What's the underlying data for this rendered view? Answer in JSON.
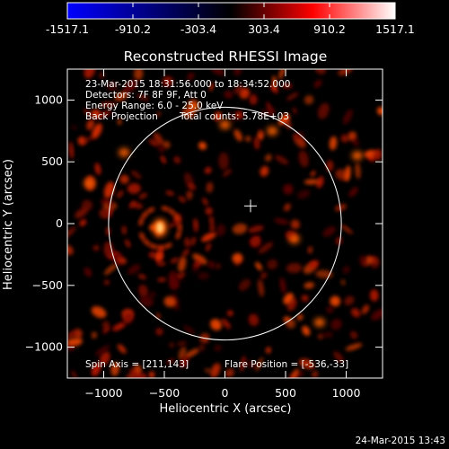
{
  "colorbar": {
    "tick_labels": [
      "-1517.1",
      "-910.2",
      "-303.4",
      "303.4",
      "910.2",
      "1517.1"
    ],
    "colors": [
      "#0000ff",
      "#000000",
      "#ff0000",
      "#ffffff"
    ]
  },
  "image": {
    "title": "Reconstructed RHESSI Image",
    "xlabel": "Heliocentric X (arcsec)",
    "ylabel": "Heliocentric Y (arcsec)",
    "xlim": [
      -1300,
      1300
    ],
    "ylim": [
      -1250,
      1250
    ],
    "xticks": [
      -1000,
      -500,
      0,
      500,
      1000
    ],
    "yticks": [
      -1000,
      -500,
      0,
      500,
      1000
    ],
    "xtick_labels": [
      "−1000",
      "−500",
      "0",
      "500",
      "1000"
    ],
    "ytick_labels": [
      "−1000",
      "−500",
      "0",
      "500",
      "1000"
    ],
    "solar_radius_arcsec": 960,
    "sun_center_marker": [
      211,
      143
    ],
    "brightest_source": [
      -536,
      -33
    ],
    "annotations": {
      "time_range": "23-Mar-2015 18:31:56.000 to 18:34:52.000",
      "detectors": "Detectors: 7F 8F 9F, Att 0",
      "energy": "Energy Range: 6.0 - 25.0 keV",
      "method": "Back Projection",
      "counts": "Total counts: 5.78E+03",
      "spin_axis": "Spin Axis = [211,143]",
      "flare_position": "Flare Position = [-536,-33]"
    }
  },
  "footer": {
    "timestamp": "24-Mar-2015 13:43"
  }
}
